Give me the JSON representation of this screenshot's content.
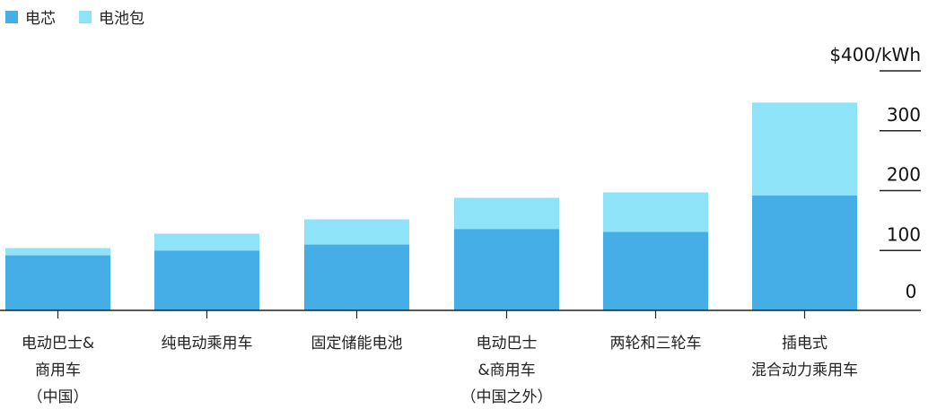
{
  "chart_data": {
    "type": "bar",
    "stacked": true,
    "categories": [
      [
        "电动巴士&",
        "商用车",
        "（中国）"
      ],
      [
        "纯电动乘用车"
      ],
      [
        "固定储能电池"
      ],
      [
        "电动巴士",
        "&商用车",
        "（中国之外）"
      ],
      [
        "两轮和三轮车"
      ],
      [
        "插电式",
        "混合动力乘用车"
      ]
    ],
    "series": [
      {
        "name": "电芯",
        "color": "#45aee6",
        "values": [
          92,
          100,
          110,
          136,
          131,
          192
        ]
      },
      {
        "name": "电池包",
        "color": "#8fe3f8",
        "values": [
          12,
          28,
          42,
          52,
          66,
          155
        ]
      }
    ],
    "yaxis": {
      "min": 0,
      "max": 400,
      "ticks": [
        {
          "value": 0,
          "label": "0"
        },
        {
          "value": 100,
          "label": "100"
        },
        {
          "value": 200,
          "label": "200"
        },
        {
          "value": 300,
          "label": "300"
        },
        {
          "value": 400,
          "label": "$400/kWh"
        }
      ],
      "position": "right"
    },
    "legend": "top-left"
  }
}
